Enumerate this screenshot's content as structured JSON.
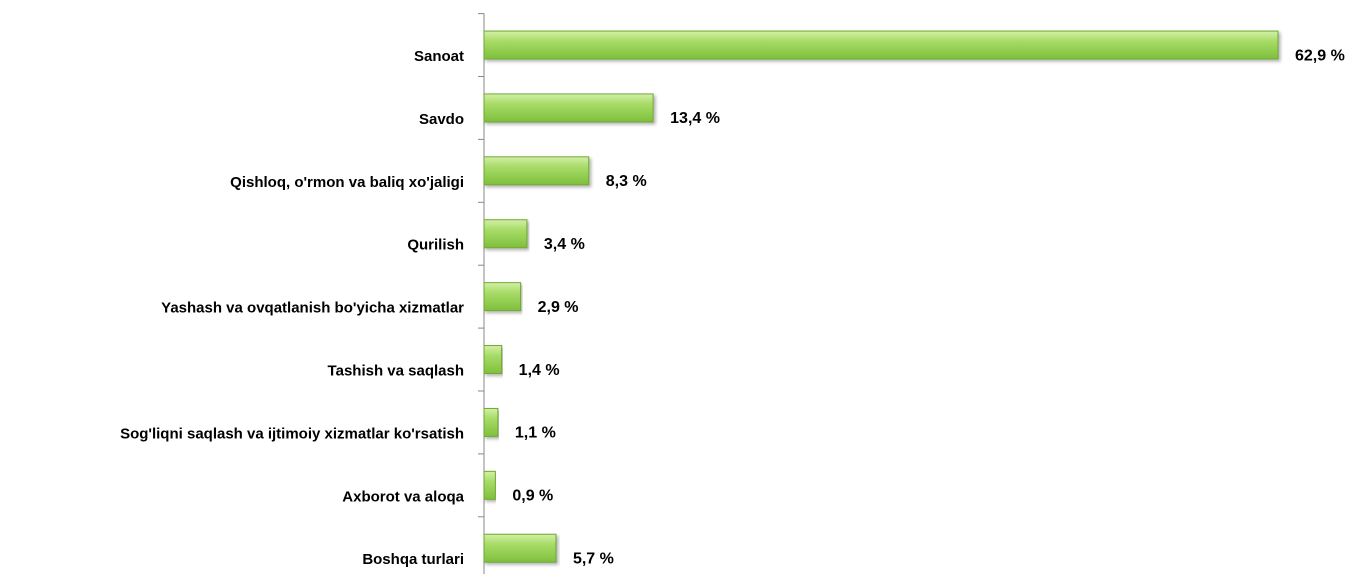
{
  "chart_data": {
    "type": "bar",
    "orientation": "horizontal",
    "categories": [
      "Sanoat",
      "Savdo",
      "Qishloq, o'rmon va baliq xo'jaligi",
      "Qurilish",
      "Yashash va ovqatlanish bo'yicha xizmatlar",
      "Tashish va saqlash",
      "Sog'liqni saqlash va ijtimoiy xizmatlar ko'rsatish",
      "Axborot va aloqa",
      "Boshqa turlari"
    ],
    "values": [
      62.9,
      13.4,
      8.3,
      3.4,
      2.9,
      1.4,
      1.1,
      0.9,
      5.7
    ],
    "value_labels": [
      "62,9 %",
      "13,4 %",
      "8,3 %",
      "3,4 %",
      "2,9 %",
      "1,4 %",
      "1,1 %",
      "0,9 %",
      "5,7 %"
    ],
    "color": "#9bd45a"
  }
}
